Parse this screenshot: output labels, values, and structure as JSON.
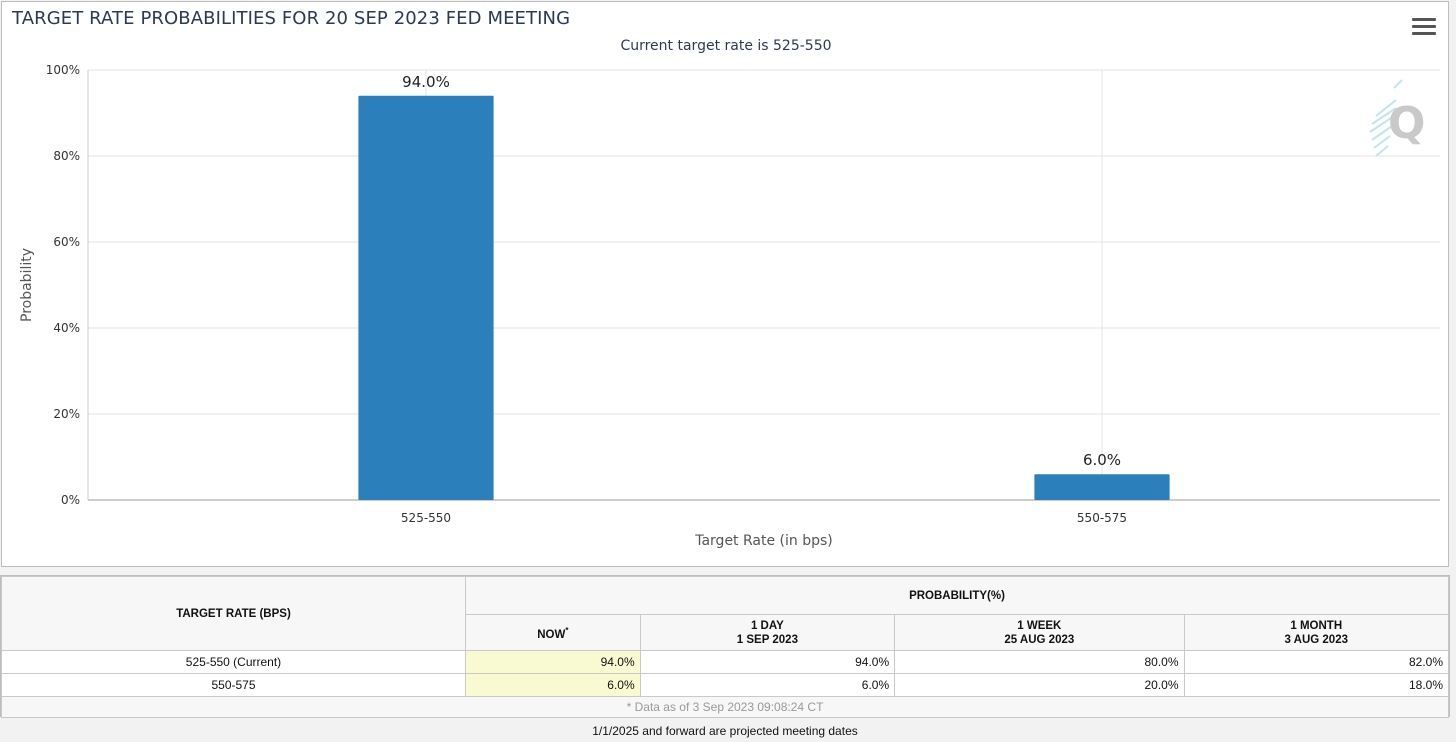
{
  "chart_data": {
    "type": "bar",
    "title": "TARGET RATE PROBABILITIES FOR 20 SEP 2023 FED MEETING",
    "subtitle": "Current target rate is 525-550",
    "categories": [
      "525-550",
      "550-575"
    ],
    "values": [
      94.0,
      6.0
    ],
    "data_labels": [
      "94.0%",
      "6.0%"
    ],
    "xlabel": "Target Rate (in bps)",
    "ylabel": "Probability",
    "ylim": [
      0,
      100
    ],
    "yticks": [
      0,
      20,
      40,
      60,
      80,
      100
    ],
    "ytick_labels": [
      "0%",
      "20%",
      "40%",
      "60%",
      "80%",
      "100%"
    ],
    "grid": true,
    "bar_color": "#2b7fba"
  },
  "menu_icon": "hamburger-menu-icon",
  "watermark_icon": "quikstrike-q-logo",
  "table": {
    "rate_header": "TARGET RATE (BPS)",
    "prob_header": "PROBABILITY(%)",
    "columns": [
      {
        "line1": "NOW",
        "marker": "*",
        "line2": ""
      },
      {
        "line1": "1 DAY",
        "line2": "1 SEP 2023"
      },
      {
        "line1": "1 WEEK",
        "line2": "25 AUG 2023"
      },
      {
        "line1": "1 MONTH",
        "line2": "3 AUG 2023"
      }
    ],
    "rows": [
      {
        "rate": "525-550 (Current)",
        "values": [
          "94.0%",
          "94.0%",
          "80.0%",
          "82.0%"
        ]
      },
      {
        "rate": "550-575",
        "values": [
          "6.0%",
          "6.0%",
          "20.0%",
          "18.0%"
        ]
      }
    ],
    "data_note": "* Data as of 3 Sep 2023 09:08:24 CT",
    "highlight_color": "#fafad2"
  },
  "footer_note": "1/1/2025 and forward are projected meeting dates"
}
